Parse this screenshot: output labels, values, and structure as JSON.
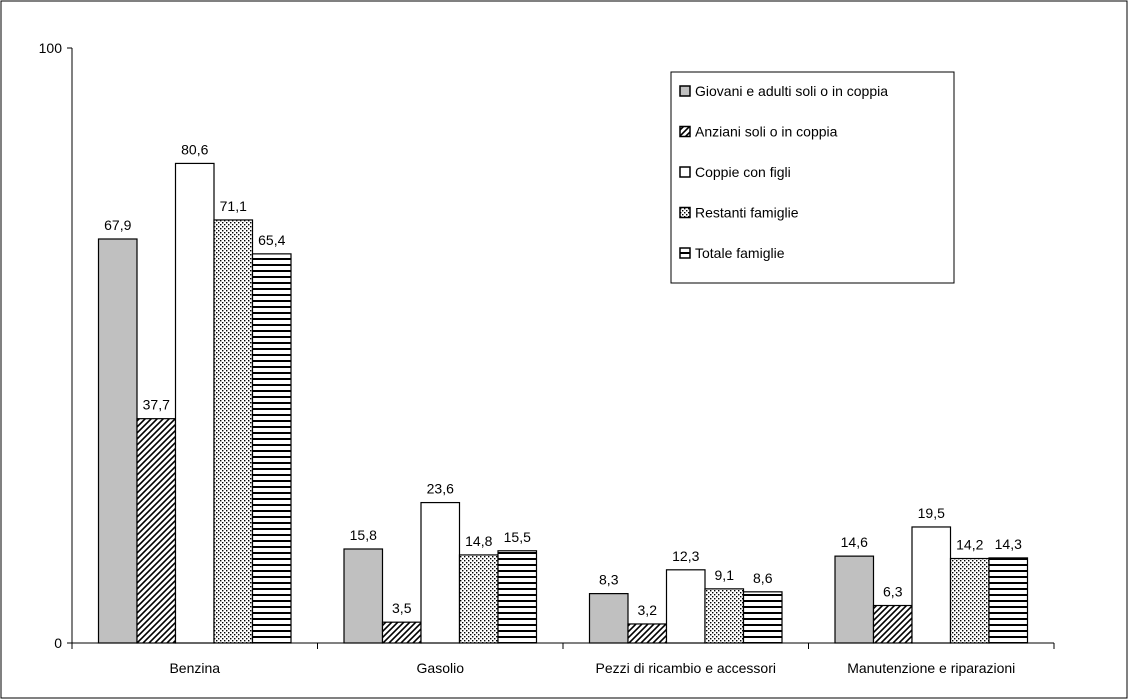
{
  "chart_data": {
    "type": "bar",
    "title": "",
    "xlabel": "",
    "ylabel": "",
    "ylim": [
      0,
      100
    ],
    "y_ticks": [
      "0",
      "100"
    ],
    "categories": [
      "Benzina",
      "Gasolio",
      "Pezzi di ricambio e accessori",
      "Manutenzione e riparazioni"
    ],
    "series": [
      {
        "name": "Giovani e adulti soli o in coppia",
        "pattern": "solid-gray",
        "color": "#c0c0c0",
        "values": [
          67.9,
          15.8,
          8.3,
          14.6
        ],
        "labels": [
          "67,9",
          "15,8",
          "8,3",
          "14,6"
        ]
      },
      {
        "name": "Anziani soli o in coppia",
        "pattern": "diagonal-hatch",
        "color": "#000000",
        "values": [
          37.7,
          3.5,
          3.2,
          6.3
        ],
        "labels": [
          "37,7",
          "3,5",
          "3,2",
          "6,3"
        ]
      },
      {
        "name": "Coppie con figli",
        "pattern": "white",
        "color": "#ffffff",
        "values": [
          80.6,
          23.6,
          12.3,
          19.5
        ],
        "labels": [
          "80,6",
          "23,6",
          "12,3",
          "19,5"
        ]
      },
      {
        "name": "Restanti famiglie",
        "pattern": "dotted",
        "color": "#000000",
        "values": [
          71.1,
          14.8,
          9.1,
          14.2
        ],
        "labels": [
          "71,1",
          "14,8",
          "9,1",
          "14,2"
        ]
      },
      {
        "name": "Totale famiglie",
        "pattern": "horizontal-stripes",
        "color": "#000000",
        "values": [
          65.4,
          15.5,
          8.6,
          14.3
        ],
        "labels": [
          "65,4",
          "15,5",
          "8,6",
          "14,3"
        ]
      }
    ],
    "grid": false,
    "legend_position": "top-right"
  }
}
